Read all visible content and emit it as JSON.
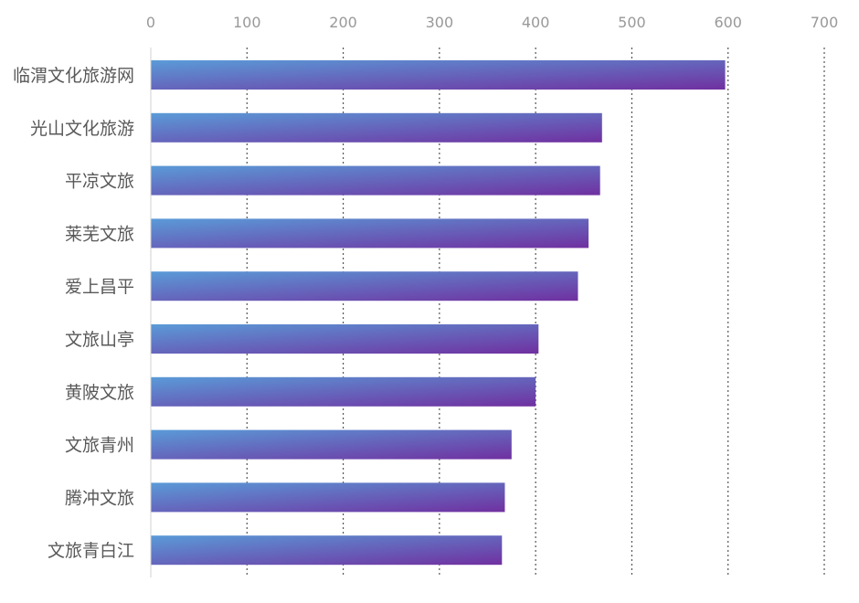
{
  "chart_data": {
    "type": "bar",
    "orientation": "horizontal",
    "categories": [
      "临渭文化旅游网",
      "光山文化旅游",
      "平凉文旅",
      "莱芜文旅",
      "爱上昌平",
      "文旅山亭",
      "黄陂文旅",
      "文旅青州",
      "腾冲文旅",
      "文旅青白江"
    ],
    "values": [
      597,
      469,
      467,
      455,
      444,
      403,
      400,
      375,
      368,
      365
    ],
    "xlim": [
      0,
      700
    ],
    "ticks": [
      0,
      100,
      200,
      300,
      400,
      500,
      600,
      700
    ],
    "tick_labels": [
      "0",
      "100",
      "200",
      "300",
      "400",
      "500",
      "600",
      "700"
    ],
    "axis_position": "top",
    "grid": true,
    "grid_style": "dotted",
    "legend": "none",
    "title": "",
    "xlabel": "",
    "ylabel": ""
  },
  "colors": {
    "bar_gradient_start": "#5a9bd8",
    "bar_gradient_end": "#7030a0",
    "grid": "#555555",
    "axis_line": "#d0d0d0",
    "tick_text": "#999999",
    "category_text": "#595959"
  }
}
